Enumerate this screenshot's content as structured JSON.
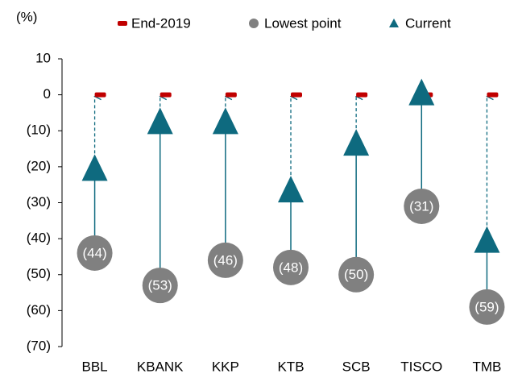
{
  "chart_data": {
    "type": "dot-range",
    "y_label": "(%)",
    "categories": [
      "BBL",
      "KBANK",
      "KKP",
      "KTB",
      "SCB",
      "TISCO",
      "TMB"
    ],
    "series": [
      {
        "name": "End-2019",
        "color": "#c00000",
        "values": [
          0,
          0,
          0,
          0,
          0,
          0,
          0
        ]
      },
      {
        "name": "Lowest point",
        "color": "#808080",
        "values": [
          -44,
          -53,
          -46,
          -48,
          -50,
          -31,
          -59
        ],
        "value_labels": [
          "(44)",
          "(53)",
          "(46)",
          "(48)",
          "(50)",
          "(31)",
          "(59)"
        ]
      },
      {
        "name": "Current",
        "color": "#0e6a7f",
        "values": [
          -21,
          -8,
          -8,
          -27,
          -14,
          0,
          -41
        ]
      }
    ],
    "ylim": [
      -70,
      10
    ],
    "yticks": [
      {
        "value": -70,
        "label": "(70)"
      },
      {
        "value": -60,
        "label": "(60)"
      },
      {
        "value": -50,
        "label": "(50)"
      },
      {
        "value": -40,
        "label": "(40)"
      },
      {
        "value": -30,
        "label": "(30)"
      },
      {
        "value": -20,
        "label": "(20)"
      },
      {
        "value": -10,
        "label": "(10)"
      },
      0,
      10
    ]
  }
}
